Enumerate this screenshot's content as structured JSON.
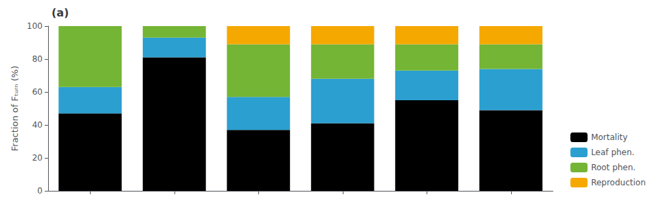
{
  "chart_data": {
    "type": "bar",
    "title": "(a)",
    "ylabel": "Fraction of Fₜᵤᵣₙ (%)",
    "categories": [
      null,
      null,
      null,
      null,
      null,
      null
    ],
    "series": [
      {
        "name": "Mortality",
        "color": "#000000",
        "values": [
          47,
          81,
          37,
          41,
          55,
          49
        ]
      },
      {
        "name": "Leaf phen.",
        "color": "#2B9FD0",
        "values": [
          16,
          12,
          20,
          27,
          18,
          25
        ]
      },
      {
        "name": "Root phen.",
        "color": "#74B535",
        "values": [
          37,
          7,
          32,
          21,
          16,
          15
        ]
      },
      {
        "name": "Reproduction",
        "color": "#F5A800",
        "values": [
          0,
          0,
          11,
          11,
          11,
          11
        ]
      }
    ],
    "stacked": true,
    "ylim": [
      0,
      100
    ],
    "yticks": [
      0,
      20,
      40,
      60,
      80,
      100
    ],
    "grid": false,
    "legend": "lower right",
    "tick_labels": "y"
  }
}
